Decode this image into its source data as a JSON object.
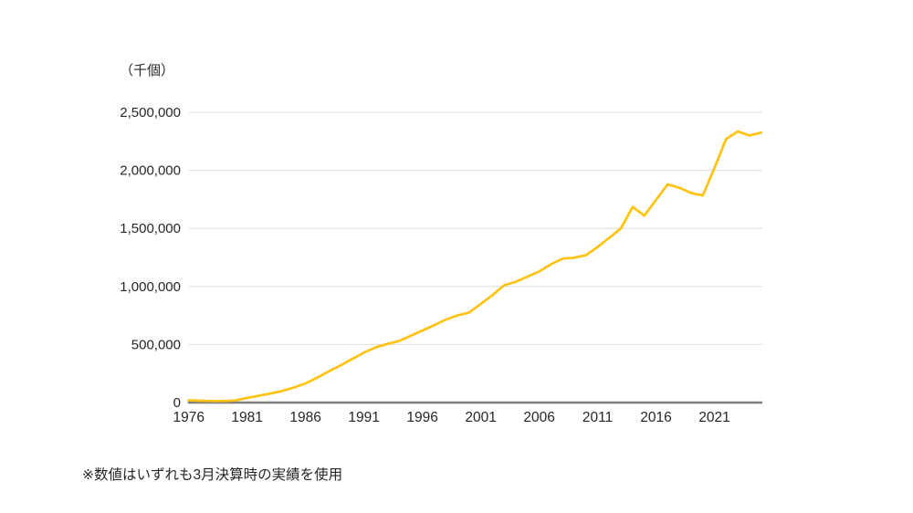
{
  "chart_data": {
    "type": "line",
    "title": "",
    "unit_label": "（千個）",
    "footnote": "※数値はいずれも3月決算時の実績を使用",
    "x": [
      1976,
      1977,
      1978,
      1979,
      1980,
      1981,
      1982,
      1983,
      1984,
      1985,
      1986,
      1987,
      1988,
      1989,
      1990,
      1991,
      1992,
      1993,
      1994,
      1995,
      1996,
      1997,
      1998,
      1999,
      2000,
      2001,
      2002,
      2003,
      2004,
      2005,
      2006,
      2007,
      2008,
      2009,
      2010,
      2011,
      2012,
      2013,
      2014,
      2015,
      2016,
      2017,
      2018,
      2019,
      2020,
      2021,
      2022,
      2023,
      2024,
      2025
    ],
    "values": [
      20000,
      16000,
      13000,
      13000,
      18000,
      40000,
      58000,
      78000,
      100000,
      130000,
      165000,
      215000,
      270000,
      320000,
      375000,
      430000,
      475000,
      505000,
      530000,
      575000,
      620000,
      665000,
      715000,
      750000,
      775000,
      850000,
      925000,
      1010000,
      1040000,
      1085000,
      1130000,
      1190000,
      1240000,
      1248000,
      1270000,
      1340000,
      1420000,
      1500000,
      1685000,
      1610000,
      1745000,
      1880000,
      1850000,
      1805000,
      1783000,
      2020000,
      2270000,
      2335000,
      2300000,
      2325000
    ],
    "x_ticks": [
      1976,
      1981,
      1986,
      1991,
      1996,
      2001,
      2006,
      2011,
      2016,
      2021
    ],
    "y_ticks": [
      0,
      500000,
      1000000,
      1500000,
      2000000,
      2500000
    ],
    "xlim": [
      1976,
      2025
    ],
    "ylim": [
      0,
      2500000
    ],
    "grid": "horizontal-only",
    "legend": "none",
    "colors": {
      "series": "#FFC20E",
      "gridline": "#DBDBDB",
      "axis": "#7F7F7F",
      "text": "#262626"
    }
  }
}
